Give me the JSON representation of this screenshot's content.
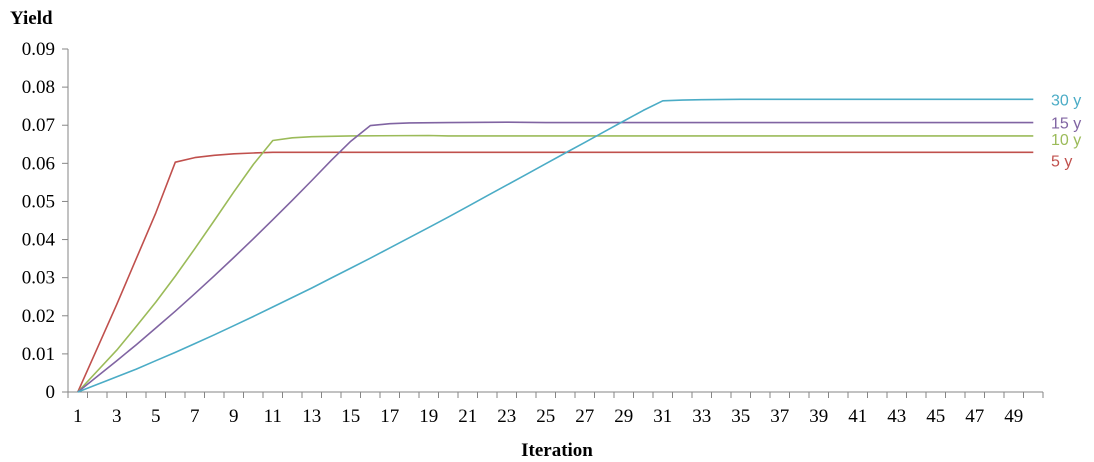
{
  "chart_data": {
    "type": "line",
    "title": "",
    "xlabel": "Iteration",
    "ylabel": "Yield",
    "xlim": [
      1,
      50
    ],
    "ylim": [
      0,
      0.09
    ],
    "x_tick_labels": [
      "1",
      "3",
      "5",
      "7",
      "9",
      "11",
      "13",
      "15",
      "17",
      "19",
      "21",
      "23",
      "25",
      "27",
      "29",
      "31",
      "33",
      "35",
      "37",
      "39",
      "41",
      "43",
      "45",
      "47",
      "49"
    ],
    "y_tick_labels": [
      "0",
      "0.01",
      "0.02",
      "0.03",
      "0.04",
      "0.05",
      "0.06",
      "0.07",
      "0.08",
      "0.09"
    ],
    "grid": false,
    "legend": "labels at right end of each line",
    "series": [
      {
        "name": "5 y",
        "color": "#c0504d",
        "points": [
          [
            1,
            0
          ],
          [
            2,
            0.0115
          ],
          [
            3,
            0.023
          ],
          [
            4,
            0.035
          ],
          [
            5,
            0.047
          ],
          [
            6,
            0.0603
          ],
          [
            7,
            0.0615
          ],
          [
            8,
            0.0621
          ],
          [
            9,
            0.0625
          ],
          [
            10,
            0.0627
          ],
          [
            11,
            0.0629
          ],
          [
            12,
            0.0629
          ],
          [
            50,
            0.0629
          ]
        ]
      },
      {
        "name": "10 y",
        "color": "#9bbb59",
        "points": [
          [
            1,
            0
          ],
          [
            2,
            0.0055
          ],
          [
            3,
            0.011
          ],
          [
            4,
            0.0172
          ],
          [
            5,
            0.0236
          ],
          [
            6,
            0.0304
          ],
          [
            7,
            0.0376
          ],
          [
            8,
            0.045
          ],
          [
            9,
            0.0525
          ],
          [
            10,
            0.0597
          ],
          [
            11,
            0.066
          ],
          [
            12,
            0.0667
          ],
          [
            13,
            0.067
          ],
          [
            15,
            0.0672
          ],
          [
            19,
            0.0673
          ],
          [
            20,
            0.0672
          ],
          [
            50,
            0.0672
          ]
        ]
      },
      {
        "name": "15 y",
        "color": "#8064a2",
        "points": [
          [
            1,
            0
          ],
          [
            2,
            0.0041
          ],
          [
            3,
            0.0082
          ],
          [
            4,
            0.0124
          ],
          [
            5,
            0.0168
          ],
          [
            6,
            0.0212
          ],
          [
            7,
            0.0258
          ],
          [
            8,
            0.0305
          ],
          [
            9,
            0.0353
          ],
          [
            10,
            0.0402
          ],
          [
            11,
            0.0452
          ],
          [
            12,
            0.0503
          ],
          [
            13,
            0.0555
          ],
          [
            14,
            0.0608
          ],
          [
            15,
            0.0658
          ],
          [
            16,
            0.0699
          ],
          [
            17,
            0.0704
          ],
          [
            18,
            0.0706
          ],
          [
            20,
            0.0707
          ],
          [
            23,
            0.0708
          ],
          [
            25,
            0.0707
          ],
          [
            50,
            0.0707
          ]
        ]
      },
      {
        "name": "30 y",
        "color": "#4bacc6",
        "points": [
          [
            1,
            0
          ],
          [
            2,
            0.002
          ],
          [
            3,
            0.004
          ],
          [
            4,
            0.006
          ],
          [
            5,
            0.0082
          ],
          [
            6,
            0.0104
          ],
          [
            7,
            0.0127
          ],
          [
            8,
            0.015
          ],
          [
            9,
            0.0174
          ],
          [
            10,
            0.0198
          ],
          [
            11,
            0.0223
          ],
          [
            12,
            0.0248
          ],
          [
            13,
            0.0273
          ],
          [
            14,
            0.0299
          ],
          [
            15,
            0.0325
          ],
          [
            16,
            0.0351
          ],
          [
            17,
            0.0378
          ],
          [
            18,
            0.0405
          ],
          [
            19,
            0.0432
          ],
          [
            20,
            0.0459
          ],
          [
            21,
            0.0487
          ],
          [
            22,
            0.0515
          ],
          [
            23,
            0.0543
          ],
          [
            24,
            0.0571
          ],
          [
            25,
            0.0599
          ],
          [
            26,
            0.0627
          ],
          [
            27,
            0.0655
          ],
          [
            28,
            0.0683
          ],
          [
            29,
            0.0711
          ],
          [
            30,
            0.0739
          ],
          [
            31,
            0.0764
          ],
          [
            32,
            0.0766
          ],
          [
            33,
            0.0767
          ],
          [
            35,
            0.0768
          ],
          [
            50,
            0.0768
          ]
        ]
      }
    ]
  }
}
